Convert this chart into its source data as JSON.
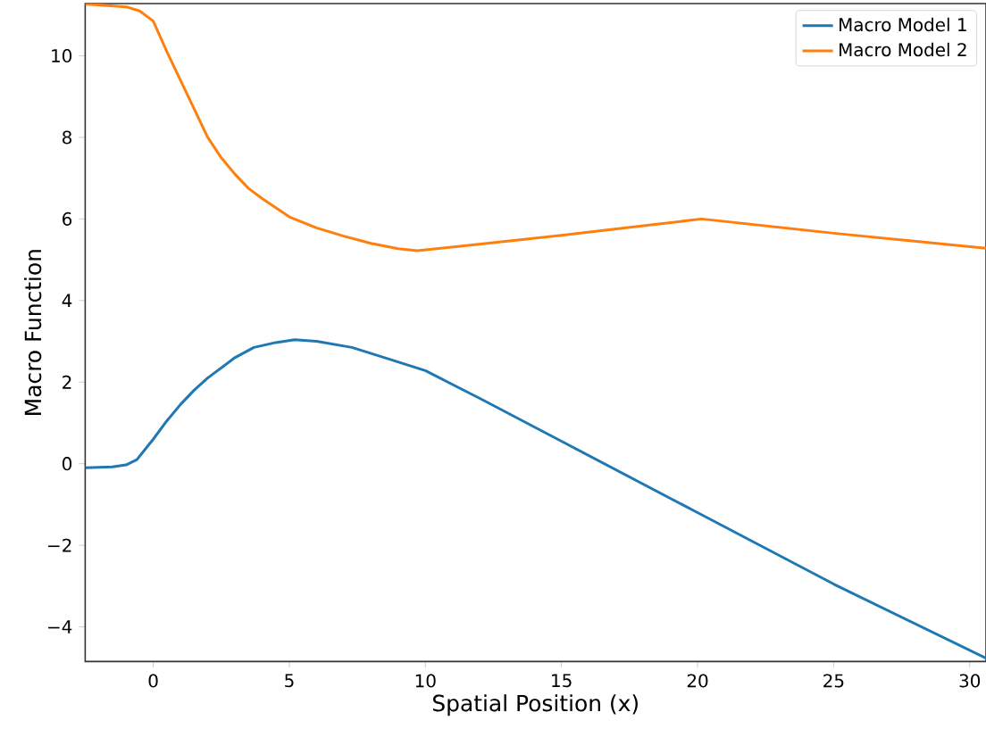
{
  "chart_data": {
    "type": "line",
    "xlabel": "Spatial Position (x)",
    "ylabel": "Macro Function",
    "xlim": [
      -2.5,
      30.6
    ],
    "ylim": [
      -4.85,
      11.28
    ],
    "xticks": [
      0,
      5,
      10,
      15,
      20,
      25,
      30
    ],
    "yticks": [
      {
        "value": -4,
        "label": "−4"
      },
      {
        "value": -2,
        "label": "−2"
      },
      0,
      2,
      4,
      6,
      8,
      10
    ],
    "grid": false,
    "legend": "top right",
    "series": [
      {
        "name": "Macro Model 1",
        "color": "#1f77b4",
        "x": [
          -2.5,
          -1.5,
          -1.0,
          -0.6,
          0,
          0.5,
          1.0,
          1.5,
          2.0,
          2.5,
          3.0,
          3.7,
          4.5,
          5.2,
          6.0,
          7.3,
          8.5,
          10.0,
          12.0,
          15.0,
          20.0,
          25.0,
          30.6
        ],
        "values": [
          -0.1,
          -0.08,
          -0.03,
          0.1,
          0.6,
          1.05,
          1.45,
          1.8,
          2.1,
          2.35,
          2.6,
          2.85,
          2.97,
          3.04,
          3.0,
          2.85,
          2.6,
          2.28,
          1.6,
          0.55,
          -1.2,
          -2.95,
          -4.77
        ]
      },
      {
        "name": "Macro Model 2",
        "color": "#ff7f0e",
        "x": [
          -2.5,
          -1.0,
          -0.5,
          0,
          0.5,
          1.0,
          1.5,
          2.0,
          2.5,
          3.0,
          3.5,
          4.0,
          5.0,
          6.0,
          7.0,
          8.0,
          9.0,
          9.7,
          15.0,
          20.15,
          25.0,
          30.6
        ],
        "values": [
          11.27,
          11.2,
          11.1,
          10.85,
          10.1,
          9.4,
          8.7,
          8.0,
          7.5,
          7.1,
          6.75,
          6.5,
          6.05,
          5.78,
          5.58,
          5.4,
          5.27,
          5.22,
          5.6,
          6.0,
          5.65,
          5.28
        ]
      }
    ]
  }
}
